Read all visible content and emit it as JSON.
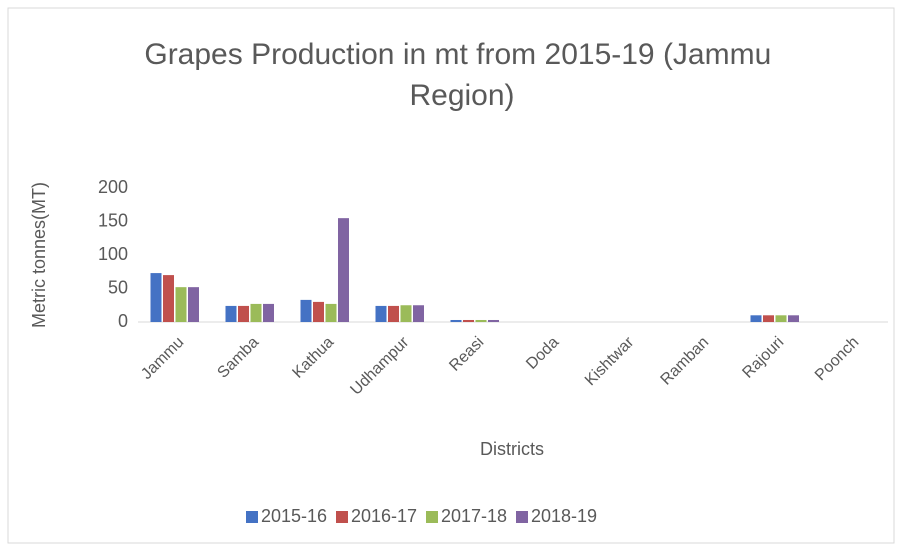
{
  "chart_data": {
    "type": "bar",
    "title": "Grapes Production in mt from 2015-19 (Jammu Region)",
    "y_label": "Metric tonnes(MT)",
    "x_label": "Districts",
    "categories": [
      "Jammu",
      "Samba",
      "Kathua",
      "Udhampur",
      "Reasi",
      "Doda",
      "Kishtwar",
      "Ramban",
      "Rajouri",
      "Poonch"
    ],
    "series": [
      {
        "name": "2015-16",
        "color": "#4472c4",
        "values": [
          73,
          24,
          33,
          24,
          3,
          0,
          0,
          0,
          10,
          0
        ]
      },
      {
        "name": "2016-17",
        "color": "#c0504d",
        "values": [
          70,
          24,
          30,
          24,
          3,
          0,
          0,
          0,
          10,
          0
        ]
      },
      {
        "name": "2017-18",
        "color": "#9bbb59",
        "values": [
          52,
          27,
          27,
          25,
          3,
          0,
          0,
          0,
          10,
          0
        ]
      },
      {
        "name": "2018-19",
        "color": "#8064a2",
        "values": [
          52,
          27,
          155,
          25,
          3,
          0,
          0,
          0,
          10,
          0
        ]
      }
    ],
    "ylim": [
      0,
      200
    ],
    "yticks": [
      0,
      50,
      100,
      150,
      200
    ],
    "grid": false,
    "legend": "bottom"
  }
}
